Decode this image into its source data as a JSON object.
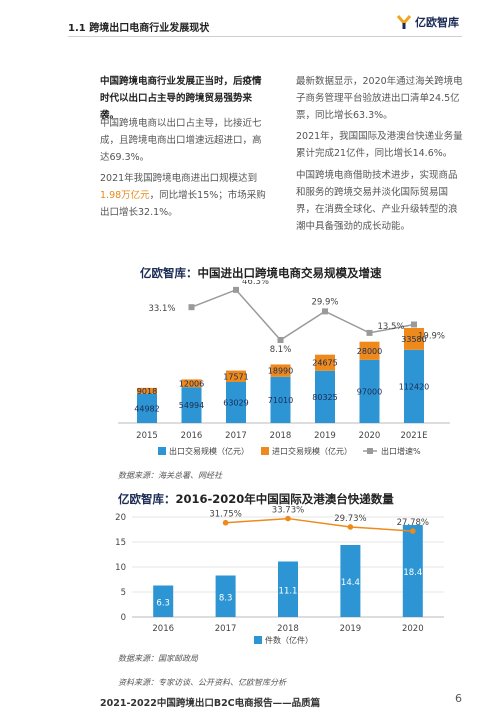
{
  "header": {
    "section_title": "1.1 跨境出口电商行业发展现状",
    "logo_text": "亿欧智库"
  },
  "left_col": {
    "p1": "中国跨境电商行业发展正当时，后疫情时代以出口占主导的跨境贸易强势来袭。",
    "p2": "中国跨境电商以出口占主导，比接近七成，且跨境电商出口增速远超进口，高达69.3%。",
    "p3_a": "2021年我国跨境电商进出口规模达到",
    "p3_hl": "1.98万亿元",
    "p3_b": "，同比增长15%；市场采购出口增长32.1%。"
  },
  "right_col": {
    "p1": "最新数据显示，2020年通过海关跨境电子商务管理平台验放进出口清单24.5亿票，同比增长63.3%。",
    "p2": "2021年，我国国际及港澳台快递业务量累计完成21亿件，同比增长14.6%。",
    "p3": "中国跨境电商借助技术进步，实现商品和服务的跨境交易并淡化国际贸易国界，在消费全球化、产业升级转型的浪潮中具备强劲的成长动能。"
  },
  "chart1_title": {
    "brand": "亿欧智库：",
    "text": "中国进出口跨境电商交易规模及增速"
  },
  "chart1_source": "数据来源：海关总署、网经社",
  "chart2_title": {
    "brand": "亿欧智库：",
    "text": "2016-2020年中国国际及港澳台快递数量"
  },
  "chart2_source": "数据来源：国家邮政局",
  "bottom_source": "资料来源：专家访谈、公开资料、亿欧智库分析",
  "footer": {
    "title": "2021-2022中国跨境出口B2C电商报告——品质篇",
    "page": "6"
  },
  "colors": {
    "blue": "#2d95d3",
    "orange": "#ee8a1c",
    "gray": "#9a9a9a",
    "navy": "#1b2b55"
  },
  "chart_data": [
    {
      "type": "bar",
      "stacked": true,
      "categories": [
        "2015",
        "2016",
        "2017",
        "2018",
        "2019",
        "2020",
        "2021E"
      ],
      "series": [
        {
          "name": "出口交易规模（亿元）",
          "values": [
            44982,
            54994,
            63029,
            71010,
            80325,
            97000,
            112420
          ]
        },
        {
          "name": "进口交易规模（亿元）",
          "values": [
            9018,
            12006,
            17571,
            18990,
            24675,
            28000,
            33580
          ]
        },
        {
          "name": "出口增速%",
          "type": "line",
          "values": [
            null,
            33.1,
            46.3,
            8.1,
            29.9,
            13.5,
            19.9
          ]
        }
      ],
      "value_labels": {
        "line": [
          "",
          "33.1%",
          "46.3%",
          "8.1%",
          "29.9%",
          "13.5%",
          "19.9%"
        ]
      },
      "legend_placement": "bottom",
      "grid": false
    },
    {
      "type": "bar",
      "categories": [
        "2016",
        "2017",
        "2018",
        "2019",
        "2020"
      ],
      "series": [
        {
          "name": "件数（亿件）",
          "values": [
            6.3,
            8.3,
            11.1,
            14.4,
            18.4
          ]
        },
        {
          "type": "line",
          "values": [
            null,
            31.75,
            33.73,
            29.73,
            27.78
          ]
        }
      ],
      "value_labels": {
        "line": [
          "",
          "31.75%",
          "33.73%",
          "29.73%",
          "27.78%"
        ]
      },
      "y_ticks": [
        0,
        5,
        10,
        15,
        20
      ],
      "ylim": [
        0,
        20
      ],
      "legend_placement": "bottom",
      "grid": true
    }
  ]
}
